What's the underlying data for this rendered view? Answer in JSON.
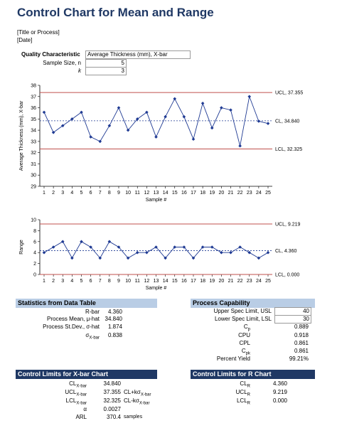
{
  "header": {
    "title": "Control Chart for Mean and Range",
    "title_or_process": "[Title or Process]",
    "date": "[Date]"
  },
  "inputs": {
    "quality_label": "Quality Characteristic",
    "quality_value": "Average Thickness (mm), X-bar",
    "sample_size_label": "Sample Size, n",
    "sample_size_value": "5",
    "k_label": "k",
    "k_value": "3"
  },
  "chart_data": [
    {
      "type": "line",
      "ylabel": "Average Thickness (mm), X-bar",
      "xlabel": "Sample #",
      "x": [
        1,
        2,
        3,
        4,
        5,
        6,
        7,
        8,
        9,
        10,
        11,
        12,
        13,
        14,
        15,
        16,
        17,
        18,
        19,
        20,
        21,
        22,
        23,
        24,
        25
      ],
      "ylim": [
        29,
        38
      ],
      "yticks": [
        29,
        30,
        31,
        32,
        33,
        34,
        35,
        36,
        37,
        38
      ],
      "series": [
        {
          "values": [
            35.6,
            33.8,
            34.4,
            35.0,
            35.6,
            33.4,
            33.0,
            34.4,
            36.0,
            34.0,
            35.0,
            35.6,
            33.4,
            35.2,
            36.8,
            35.2,
            33.2,
            36.4,
            34.2,
            36.0,
            35.8,
            32.6,
            37.0,
            34.8,
            34.6
          ]
        }
      ],
      "ucl": 37.355,
      "cl": 34.84,
      "lcl": 32.325,
      "ucl_label": "UCL, 37.355",
      "cl_label": "CL, 34.840",
      "lcl_label": "LCL, 32.325",
      "grid": false
    },
    {
      "type": "line",
      "ylabel": "Range",
      "xlabel": "Sample #",
      "x": [
        1,
        2,
        3,
        4,
        5,
        6,
        7,
        8,
        9,
        10,
        11,
        12,
        13,
        14,
        15,
        16,
        17,
        18,
        19,
        20,
        21,
        22,
        23,
        24,
        25
      ],
      "ylim": [
        0,
        10
      ],
      "yticks": [
        0,
        2,
        4,
        6,
        8,
        10
      ],
      "series": [
        {
          "values": [
            4,
            5,
            6,
            3,
            6,
            5,
            3,
            6,
            5,
            3,
            4,
            4,
            5,
            3,
            5,
            5,
            3,
            5,
            5,
            4,
            4,
            5,
            4,
            3,
            4
          ]
        }
      ],
      "ucl": 9.219,
      "cl": 4.36,
      "lcl": 0.0,
      "ucl_label": "UCL, 9.219",
      "cl_label": "CL, 4.360",
      "lcl_label": "LCL, 0.000",
      "grid": false
    }
  ],
  "stats": {
    "title": "Statistics from Data Table",
    "rbar_label": "R-bar",
    "rbar_value": "4.360",
    "mean_label": "Process Mean, μ-hat",
    "mean_value": "34.840",
    "stdev_label": "Process St.Dev., σ-hat",
    "stdev_value": "1.874",
    "sigma_label": "σ",
    "sigma_sub": "X-bar",
    "sigma_value": "0.838"
  },
  "capability": {
    "title": "Process Capability",
    "usl_label": "Upper Spec Limit, USL",
    "usl_value": "40",
    "lsl_label": "Lower Spec Limit, LSL",
    "lsl_value": "30",
    "cp_label": "C",
    "cp_sub": "p",
    "cp_value": "0.889",
    "cpu_label": "CPU",
    "cpu_value": "0.918",
    "cpl_label": "CPL",
    "cpl_value": "0.861",
    "cpk_label": "C",
    "cpk_sub": "pk",
    "cpk_value": "0.861",
    "yield_label": "Percent Yield",
    "yield_value": "99.21%"
  },
  "xbar_limits": {
    "title": "Control Limits for X-bar Chart",
    "cl_label": "CL",
    "cl_sub": "X-bar",
    "cl_value": "34.840",
    "ucl_label": "UCL",
    "ucl_sub": "X-bar",
    "ucl_value": "37.355",
    "ucl_note": "CL+kσ",
    "ucl_note_sub": "X-bar",
    "lcl_label": "LCL",
    "lcl_sub": "X-bar",
    "lcl_value": "32.325",
    "lcl_note": "CL-kσ",
    "lcl_note_sub": "X-bar",
    "alpha_label": "α",
    "alpha_value": "0.0027",
    "arl_label": "ARL",
    "arl_value": "370.4",
    "arl_unit": "samples"
  },
  "r_limits": {
    "title": "Control Limits for R Chart",
    "cl_label": "CL",
    "cl_sub": "R",
    "cl_value": "4.360",
    "ucl_label": "UCL",
    "ucl_sub": "R",
    "ucl_value": "9.219",
    "lcl_label": "LCL",
    "lcl_sub": "R",
    "lcl_value": "0.000"
  },
  "colors": {
    "title": "#1f3864",
    "limit_line": "#c0504d",
    "center_line": "#1f3a93",
    "series": "#1f3a93",
    "section_light": "#b9cde5",
    "section_dark": "#1f3864"
  }
}
